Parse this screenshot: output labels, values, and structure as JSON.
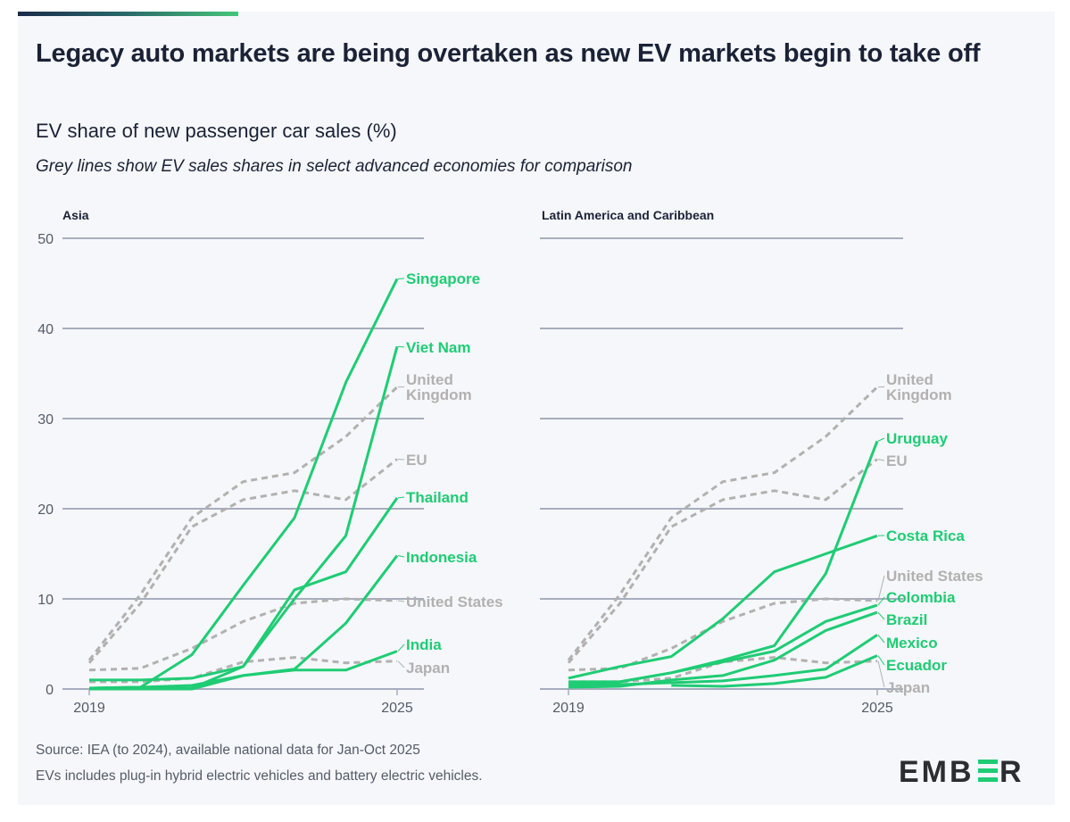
{
  "title": "Legacy auto markets are being overtaken as new EV markets begin to take off",
  "subtitle": "EV share of new passenger car sales (%)",
  "note": "Grey lines show EV sales shares in select advanced economies for comparison",
  "footer": {
    "source": "Source: IEA (to 2024), available national data for Jan-Oct 2025",
    "definition": "EVs includes plug-in hybrid electric vehicles and battery electric vehicles."
  },
  "logo": {
    "text": "EMBER",
    "accent": "#1fcc74"
  },
  "colors": {
    "highlight": "#1fcc74",
    "comparison": "#b3b0b0",
    "grid": "#a6adbd",
    "text": "#1b2236"
  },
  "chart_data": [
    {
      "type": "line",
      "title": "Asia",
      "x": [
        2019,
        2020,
        2021,
        2022,
        2023,
        2024,
        2025
      ],
      "x_tick_labels": [
        "2019",
        "2025"
      ],
      "y_ticks": [
        0,
        10,
        20,
        30,
        40,
        50
      ],
      "ylim": [
        0,
        50
      ],
      "grid": true,
      "series": [
        {
          "name": "Singapore",
          "style": "solid",
          "values": [
            0.1,
            0.2,
            3.8,
            11.5,
            19,
            34,
            45.5
          ]
        },
        {
          "name": "Viet Nam",
          "style": "solid",
          "values": [
            0,
            0,
            0.1,
            2.5,
            10,
            17,
            38
          ]
        },
        {
          "name": "Thailand",
          "style": "solid",
          "values": [
            1.0,
            1.0,
            1.2,
            2.5,
            11,
            13,
            21.2
          ]
        },
        {
          "name": "Indonesia",
          "style": "solid",
          "values": [
            0,
            0,
            0,
            1.5,
            2.2,
            7.3,
            14.8
          ]
        },
        {
          "name": "India",
          "style": "solid",
          "values": [
            0.1,
            0.2,
            0.4,
            1.5,
            2.1,
            2.1,
            4.2
          ]
        },
        {
          "name": "United Kingdom",
          "style": "dashed",
          "values": [
            3.2,
            10.5,
            19,
            23,
            24,
            28,
            33.5
          ]
        },
        {
          "name": "EU",
          "style": "dashed",
          "values": [
            2.9,
            9.5,
            18,
            21,
            22,
            21,
            25.5
          ]
        },
        {
          "name": "United States",
          "style": "dashed",
          "values": [
            2.1,
            2.3,
            4.5,
            7.5,
            9.5,
            10,
            9.8
          ]
        },
        {
          "name": "Japan",
          "style": "dashed",
          "values": [
            0.8,
            0.8,
            1.2,
            3,
            3.5,
            2.9,
            3.1
          ]
        }
      ]
    },
    {
      "type": "line",
      "title": "Latin America and Caribbean",
      "x": [
        2019,
        2020,
        2021,
        2022,
        2023,
        2024,
        2025
      ],
      "x_tick_labels": [
        "2019",
        "2025"
      ],
      "y_ticks": [
        0,
        10,
        20,
        30,
        40,
        50
      ],
      "ylim": [
        0,
        50
      ],
      "grid": true,
      "series": [
        {
          "name": "Uruguay",
          "style": "solid",
          "values": [
            0.5,
            0.8,
            1.8,
            3.2,
            4.8,
            12.8,
            27.5
          ]
        },
        {
          "name": "Costa Rica",
          "style": "solid",
          "values": [
            1.2,
            2.5,
            3.6,
            7.8,
            13,
            15,
            17
          ]
        },
        {
          "name": "Colombia",
          "style": "solid",
          "values": [
            0.8,
            0.8,
            1.8,
            3,
            4.2,
            7.5,
            9.3
          ]
        },
        {
          "name": "Brazil",
          "style": "solid",
          "values": [
            0.2,
            0.3,
            1.0,
            1.5,
            3.2,
            6.5,
            8.5
          ]
        },
        {
          "name": "Mexico",
          "style": "solid",
          "values": [
            0.5,
            0.5,
            0.7,
            0.9,
            1.5,
            2.2,
            6
          ]
        },
        {
          "name": "Ecuador",
          "style": "solid",
          "values": [
            null,
            null,
            0.4,
            0.3,
            0.6,
            1.3,
            3.7
          ]
        },
        {
          "name": "United Kingdom",
          "style": "dashed",
          "values": [
            3.2,
            10.5,
            19,
            23,
            24,
            28,
            33.5
          ]
        },
        {
          "name": "EU",
          "style": "dashed",
          "values": [
            2.9,
            9.5,
            18,
            21,
            22,
            21,
            25.5
          ]
        },
        {
          "name": "United States",
          "style": "dashed",
          "values": [
            2.1,
            2.3,
            4.5,
            7.5,
            9.5,
            10,
            9.8
          ]
        },
        {
          "name": "Japan",
          "style": "dashed",
          "values": [
            0.8,
            0.8,
            1.2,
            3,
            3.5,
            2.9,
            3.1
          ]
        }
      ]
    }
  ]
}
